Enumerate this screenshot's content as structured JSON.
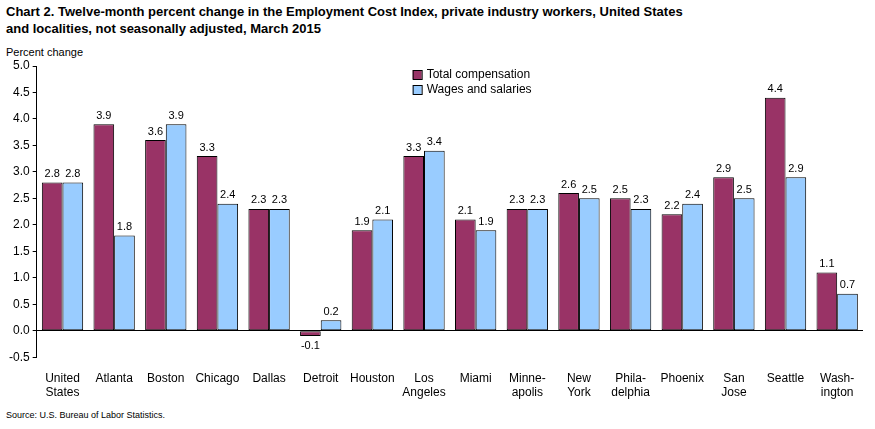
{
  "chart_data": {
    "type": "bar",
    "title": "Chart 2. Twelve-month percent change in the Employment Cost Index, private industry workers, United States\nand localities, not seasonally adjusted, March 2015",
    "y_label": "Percent change",
    "source": "Source: U.S. Bureau of Labor Statistics.",
    "categories": [
      "United\nStates",
      "Atlanta",
      "Boston",
      "Chicago",
      "Dallas",
      "Detroit",
      "Houston",
      "Los\nAngeles",
      "Miami",
      "Minne-\napolis",
      "New\nYork",
      "Phila-\ndelphia",
      "Phoenix",
      "San\nJose",
      "Seattle",
      "Wash-\nington"
    ],
    "series": [
      {
        "name": "Total compensation",
        "color": "#993366",
        "values": [
          2.8,
          3.9,
          3.6,
          3.3,
          2.3,
          -0.1,
          1.9,
          3.3,
          2.1,
          2.3,
          2.6,
          2.5,
          2.2,
          2.9,
          4.4,
          1.1
        ]
      },
      {
        "name": "Wages and salaries",
        "color": "#99CCFF",
        "values": [
          2.8,
          1.8,
          3.9,
          2.4,
          2.3,
          0.2,
          2.1,
          3.4,
          1.9,
          2.3,
          2.5,
          2.3,
          2.4,
          2.5,
          2.9,
          0.7
        ]
      }
    ],
    "ylim": [
      -0.5,
      5.0
    ],
    "yticks": [
      -0.5,
      {
        "value": 0,
        "label": "0.0"
      },
      0.5,
      {
        "value": 1,
        "label": "1.0"
      },
      1.5,
      {
        "value": 2,
        "label": "2.0"
      },
      2.5,
      {
        "value": 3,
        "label": "3.0"
      },
      3.5,
      {
        "value": 4,
        "label": "4.0"
      },
      4.5,
      {
        "value": 5,
        "label": "5.0"
      }
    ],
    "grid": false,
    "legend": "top",
    "data_labels": true
  }
}
